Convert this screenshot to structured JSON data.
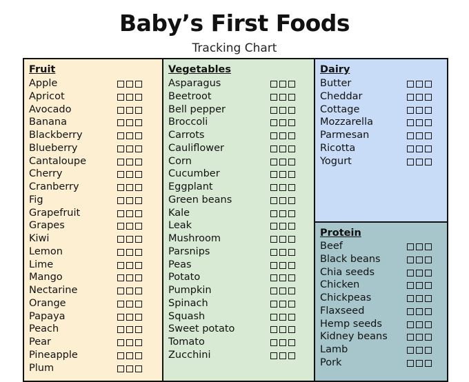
{
  "header": {
    "title": "Baby’s First Foods",
    "subtitle": "Tracking Chart"
  },
  "colors": {
    "fruit": "#fdefd2",
    "vegetables": "#d8ead4",
    "dairy": "#c9dcf7",
    "protein": "#a6c6cc"
  },
  "icons": {
    "checkbox": "empty-square-icon"
  },
  "checkboxes_per_item": 3,
  "fruit": {
    "title": "Fruit",
    "items": [
      "Apple",
      "Apricot",
      "Avocado",
      "Banana",
      "Blackberry",
      "Blueberry",
      "Cantaloupe",
      "Cherry",
      "Cranberry",
      "Fig",
      "Grapefruit",
      "Grapes",
      "Kiwi",
      "Lemon",
      "Lime",
      "Mango",
      "Nectarine",
      "Orange",
      "Papaya",
      "Peach",
      "Pear",
      "Pineapple",
      "Plum"
    ]
  },
  "vegetables": {
    "title": "Vegetables",
    "items": [
      "Asparagus",
      "Beetroot",
      "Bell pepper",
      "Broccoli",
      "Carrots",
      "Cauliflower",
      "Corn",
      "Cucumber",
      "Eggplant",
      "Green beans",
      "Kale",
      "Leak",
      "Mushroom",
      "Parsnips",
      "Peas",
      "Potato",
      "Pumpkin",
      "Spinach",
      "Squash",
      "Sweet potato",
      "Tomato",
      "Zucchini"
    ]
  },
  "dairy": {
    "title": "Dairy",
    "items": [
      "Butter",
      "Cheddar",
      "Cottage",
      "Mozzarella",
      "Parmesan",
      "Ricotta",
      "Yogurt"
    ]
  },
  "protein": {
    "title": "Protein",
    "items": [
      "Beef",
      "Black beans",
      "Chia seeds",
      "Chicken",
      "Chickpeas",
      "Flaxseed",
      "Hemp seeds",
      "Kidney beans",
      "Lamb",
      "Pork"
    ]
  }
}
